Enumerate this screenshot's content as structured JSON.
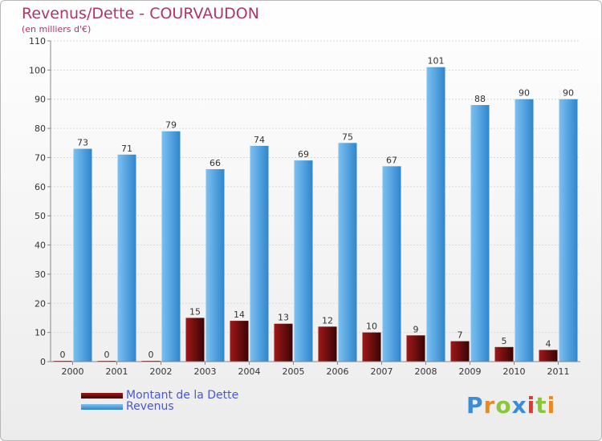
{
  "chart_data": {
    "type": "bar",
    "title": "Revenus/Dette - COURVAUDON",
    "subtitle": "(en milliers d'€)",
    "xlabel": "",
    "ylabel": "",
    "ylim": [
      0,
      110
    ],
    "yticks": [
      0,
      10,
      20,
      30,
      40,
      50,
      60,
      70,
      80,
      90,
      100,
      110
    ],
    "grid": true,
    "legend_position": "bottom-left",
    "categories": [
      "2000",
      "2001",
      "2002",
      "2003",
      "2004",
      "2005",
      "2006",
      "2007",
      "2008",
      "2009",
      "2010",
      "2011"
    ],
    "series": [
      {
        "name": "Montant de la Dette",
        "color": "#6e0a0a",
        "values": [
          0,
          0,
          0,
          15,
          14,
          13,
          12,
          10,
          9,
          7,
          5,
          4
        ]
      },
      {
        "name": "Revenus",
        "color": "#4aa3e6",
        "values": [
          73,
          71,
          79,
          66,
          74,
          69,
          75,
          67,
          101,
          88,
          90,
          90
        ]
      }
    ]
  },
  "brand": {
    "letters": [
      {
        "char": "P",
        "color": "#3b8ed6"
      },
      {
        "char": "r",
        "color": "#e98a1f"
      },
      {
        "char": "o",
        "color": "#8cc63f"
      },
      {
        "char": "x",
        "color": "#3b8ed6"
      },
      {
        "char": "i",
        "color": "#e2382d"
      },
      {
        "char": "t",
        "color": "#8cc63f"
      },
      {
        "char": "i",
        "color": "#e98a1f"
      }
    ]
  }
}
